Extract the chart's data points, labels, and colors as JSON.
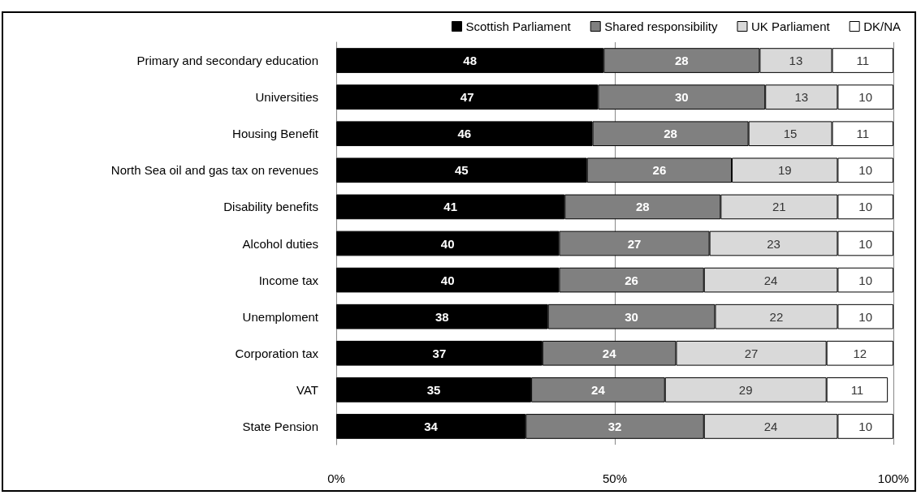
{
  "chart_data": {
    "type": "bar",
    "orientation": "horizontal",
    "stacked": true,
    "categories": [
      "Primary and secondary education",
      "Universities",
      "Housing Benefit",
      "North Sea oil and gas tax on revenues",
      "Disability benefits",
      "Alcohol duties",
      "Income tax",
      "Unemploment",
      "Corporation tax",
      "VAT",
      "State Pension"
    ],
    "series": [
      {
        "name": "Scottish Parliament",
        "color": "#000000",
        "values": [
          48,
          47,
          46,
          45,
          41,
          40,
          40,
          38,
          37,
          35,
          34
        ]
      },
      {
        "name": "Shared responsibility",
        "color": "#808080",
        "values": [
          28,
          30,
          28,
          26,
          28,
          27,
          26,
          30,
          24,
          24,
          32
        ]
      },
      {
        "name": "UK Parliament",
        "color": "#d9d9d9",
        "values": [
          13,
          13,
          15,
          19,
          21,
          23,
          24,
          22,
          27,
          29,
          24
        ]
      },
      {
        "name": "DK/NA",
        "color": "#ffffff",
        "values": [
          11,
          10,
          11,
          10,
          10,
          10,
          10,
          10,
          12,
          11,
          10
        ]
      }
    ],
    "xlim": [
      0,
      100
    ],
    "xticks": [
      {
        "value": 0,
        "label": "0%"
      },
      {
        "value": 50,
        "label": "50%"
      },
      {
        "value": 100,
        "label": "100%"
      }
    ],
    "grid": "x",
    "legend": "top right",
    "data_labels": true
  }
}
